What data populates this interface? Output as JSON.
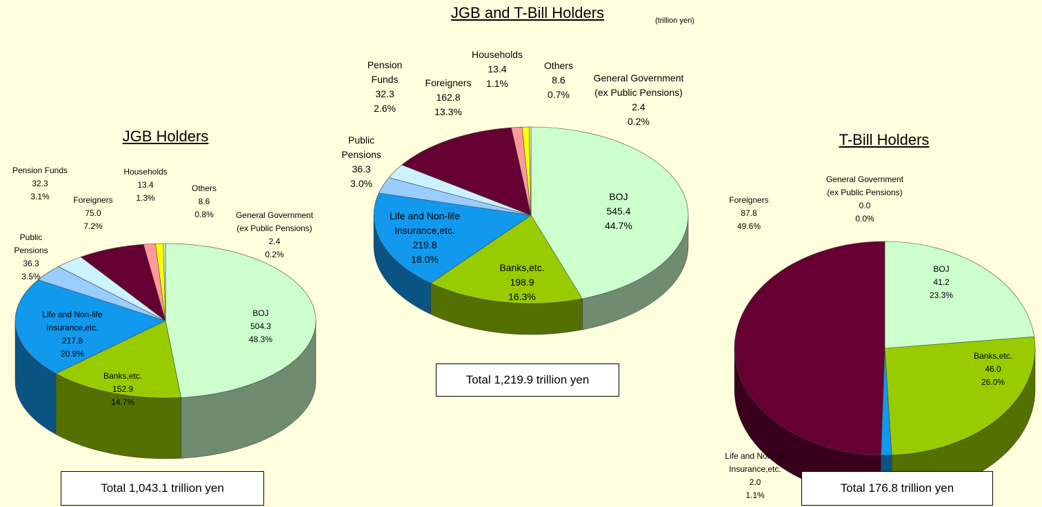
{
  "chart_data": [
    {
      "type": "pie",
      "title": "JGB Holders",
      "total_label": "Total 1,043.1 trillion yen",
      "categories": [
        "BOJ",
        "Banks,etc.",
        "Life and Non-life\nInsurance,etc.",
        "Public\nPensions",
        "Pension Funds",
        "Foreigners",
        "Households",
        "Others",
        "General Government\n(ex Public Pensions)"
      ],
      "values": [
        504.3,
        152.9,
        217.8,
        36.3,
        32.3,
        75.0,
        13.4,
        8.6,
        2.4
      ],
      "value_labels": [
        "504.3",
        "152.9",
        "217.8",
        "36.3",
        "32.3",
        "75.0",
        "13.4",
        "8.6",
        "2.4"
      ],
      "percent_labels": [
        "48.3%",
        "14.7%",
        "20.9%",
        "3.5%",
        "3.1%",
        "7.2%",
        "1.3%",
        "0.8%",
        "0.2%"
      ],
      "colors": [
        "#ccffcc",
        "#99cc00",
        "#1199ee",
        "#99ccff",
        "#ccf2ff",
        "#660033",
        "#ff9999",
        "#ffff00",
        "#ccffcc"
      ]
    },
    {
      "type": "pie",
      "title": "JGB and T-Bill Holders",
      "unit": "(trillion yen)",
      "total_label": "Total 1,219.9 trillion yen",
      "categories": [
        "BOJ",
        "Banks,etc.",
        "Life and Non-life\nInsurance,etc.",
        "Public\nPensions",
        "Pension\nFunds",
        "Foreigners",
        "Households",
        "Others",
        "General Government\n(ex Public Pensions)"
      ],
      "values": [
        545.4,
        198.9,
        219.8,
        36.3,
        32.3,
        162.8,
        13.4,
        8.6,
        2.4
      ],
      "value_labels": [
        "545.4",
        "198.9",
        "219.8",
        "36.3",
        "32.3",
        "162.8",
        "13.4",
        "8.6",
        "2.4"
      ],
      "percent_labels": [
        "44.7%",
        "16.3%",
        "18.0%",
        "3.0%",
        "2.6%",
        "13.3%",
        "1.1%",
        "0.7%",
        "0.2%"
      ],
      "colors": [
        "#ccffcc",
        "#99cc00",
        "#1199ee",
        "#99ccff",
        "#ccf2ff",
        "#660033",
        "#ff9999",
        "#ffff00",
        "#ccffcc"
      ]
    },
    {
      "type": "pie",
      "title": "T-Bill Holders",
      "total_label": "Total 176.8 trillion yen",
      "categories": [
        "BOJ",
        "Banks,etc.",
        "Life and Non-life\nInsurance,etc.",
        "Foreigners",
        "General Government\n(ex Public Pensions)"
      ],
      "values": [
        41.2,
        46.0,
        2.0,
        87.8,
        0.0
      ],
      "value_labels": [
        "41.2",
        "46.0",
        "2.0",
        "87.8",
        "0.0"
      ],
      "percent_labels": [
        "23.3%",
        "26.0%",
        "1.1%",
        "49.6%",
        "0.0%"
      ],
      "colors": [
        "#ccffcc",
        "#99cc00",
        "#1199ee",
        "#660033",
        "#ccffcc"
      ]
    }
  ]
}
